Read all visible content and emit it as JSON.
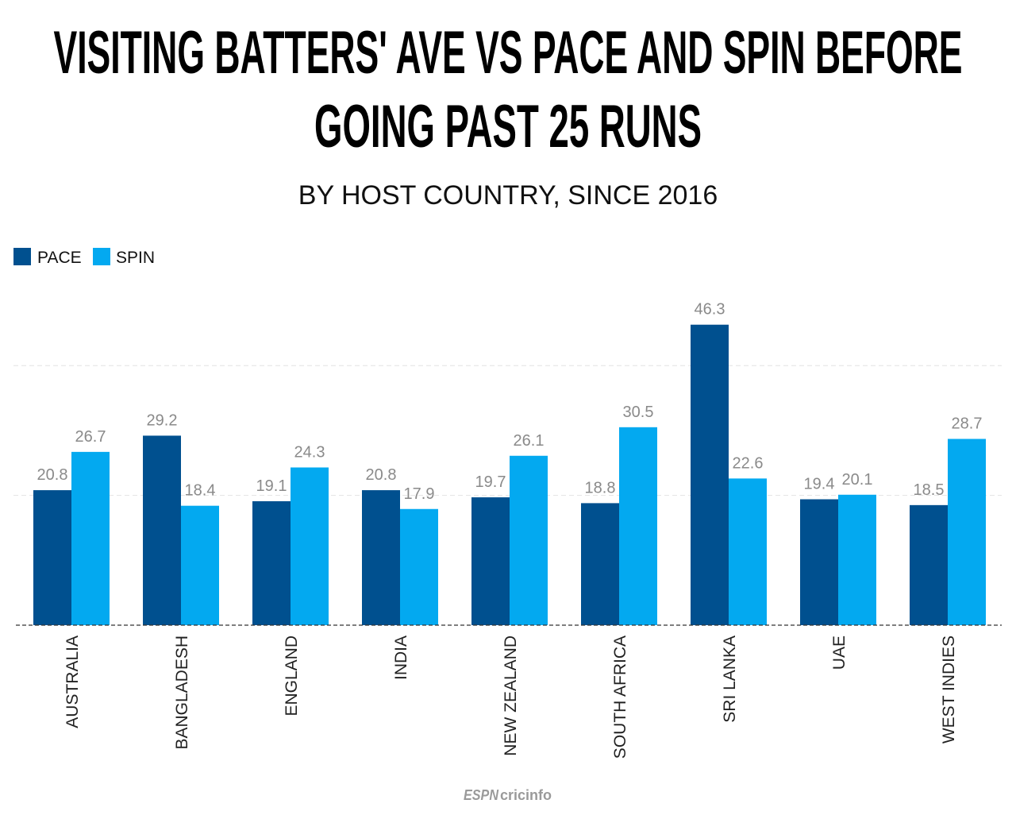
{
  "title_lines": [
    "VISITING BATTERS' AVE VS PACE AND SPIN BEFORE",
    "GOING PAST 25 RUNS"
  ],
  "subtitle": "BY HOST COUNTRY, SINCE 2016",
  "logo": {
    "espn": "ESPN",
    "text": "cricinfo"
  },
  "chart_data": {
    "type": "bar",
    "title": "VISITING BATTERS' AVE VS PACE AND SPIN BEFORE GOING PAST 25 RUNS",
    "subtitle": "BY HOST COUNTRY, SINCE 2016",
    "xlabel": "",
    "ylabel": "",
    "ylim": [
      0,
      48
    ],
    "gridlines": [
      20,
      40
    ],
    "grid": true,
    "legend_position": "top-left",
    "categories": [
      "AUSTRALIA",
      "BANGLADESH",
      "ENGLAND",
      "INDIA",
      "NEW ZEALAND",
      "SOUTH AFRICA",
      "SRI LANKA",
      "UAE",
      "WEST INDIES"
    ],
    "series": [
      {
        "name": "PACE",
        "color": "#00508f",
        "values": [
          20.8,
          29.2,
          19.1,
          20.8,
          19.7,
          18.8,
          46.3,
          19.4,
          18.5
        ]
      },
      {
        "name": "SPIN",
        "color": "#03a9f0",
        "values": [
          26.7,
          18.4,
          24.3,
          17.9,
          26.1,
          30.5,
          22.6,
          20.1,
          28.7
        ]
      }
    ]
  }
}
